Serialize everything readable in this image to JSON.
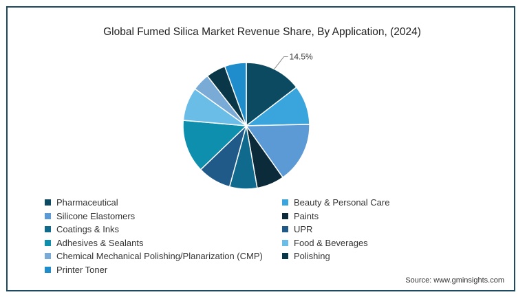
{
  "chart_data": {
    "type": "pie",
    "title": "Global Fumed Silica Market Revenue Share, By Application, (2024)",
    "slices": [
      {
        "label": "Pharmaceutical",
        "value": 14.5,
        "color": "#0b4a60"
      },
      {
        "label": "Beauty & Personal Care",
        "value": 10.0,
        "color": "#3aa5dc"
      },
      {
        "label": "Silicone Elastomers",
        "value": 15.5,
        "color": "#5b9ad5"
      },
      {
        "label": "Paints",
        "value": 7.0,
        "color": "#0c2b3a"
      },
      {
        "label": "Coatings & Inks",
        "value": 7.0,
        "color": "#0f6a8e"
      },
      {
        "label": "UPR",
        "value": 8.5,
        "color": "#1f5a88"
      },
      {
        "label": "Adhesives & Sealants",
        "value": 13.5,
        "color": "#0e8fae"
      },
      {
        "label": "Food & Beverages",
        "value": 8.5,
        "color": "#69bde6"
      },
      {
        "label": "Chemical Mechanical Polishing/Planarization (CMP)",
        "value": 4.5,
        "color": "#7aaad6"
      },
      {
        "label": "Polishing",
        "value": 5.0,
        "color": "#0a3747"
      },
      {
        "label": "Printer Toner",
        "value": 5.5,
        "color": "#1f8ccc"
      }
    ],
    "annotations": [
      {
        "label": "Pharmaceutical",
        "text": "14.5%"
      }
    ],
    "legend": "bottom"
  },
  "source": "Source: www.gminsights.com"
}
